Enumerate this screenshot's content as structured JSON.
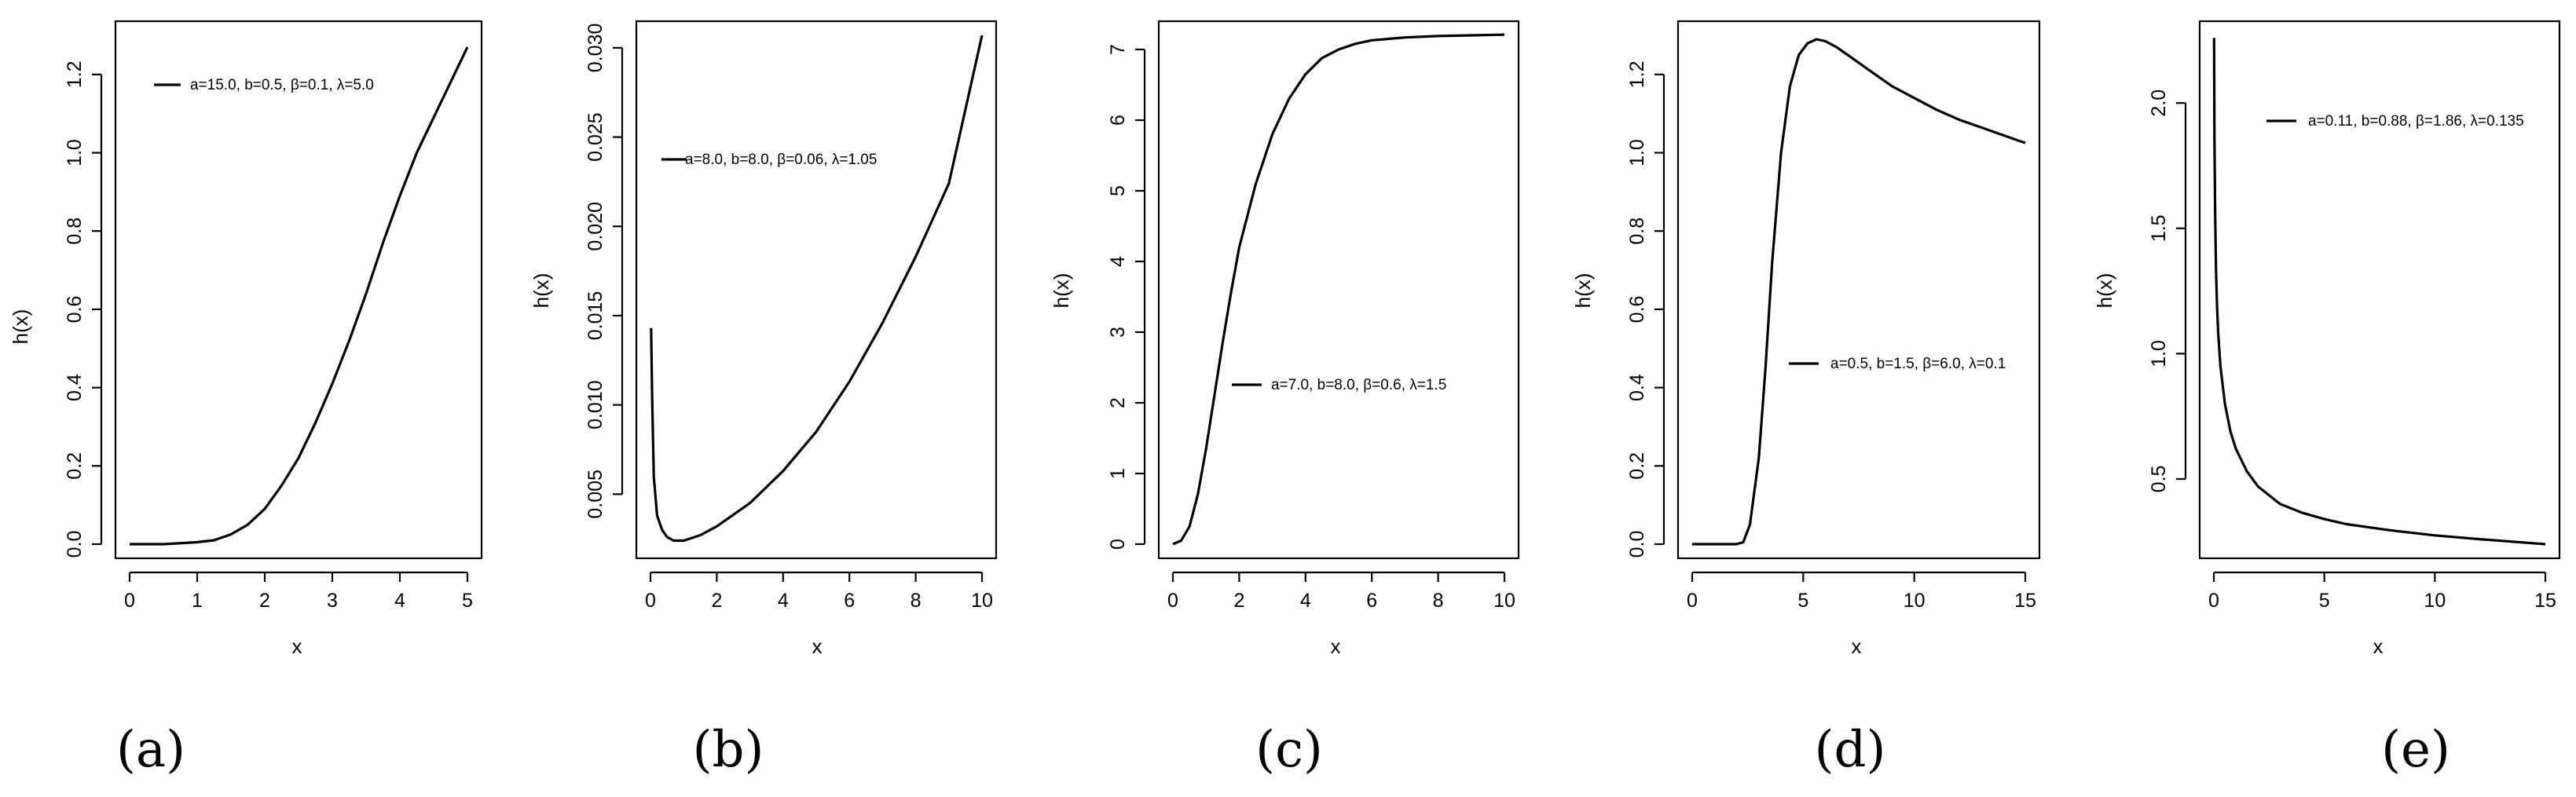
{
  "chart_data": [
    {
      "type": "line",
      "panel_label": "(a)",
      "xlabel": "x",
      "ylabel": "h(x)",
      "xlim": [
        0,
        5
      ],
      "ylim": [
        0,
        1.3
      ],
      "xticks": [
        "0",
        "1",
        "2",
        "3",
        "4",
        "5"
      ],
      "yticks": [
        "0.0",
        "0.2",
        "0.4",
        "0.6",
        "0.8",
        "1.0",
        "1.2"
      ],
      "legend": "a=15.0, b=0.5, β=0.1, λ=5.0",
      "legend_position": "top-left",
      "series": [
        {
          "name": "a=15.0, b=0.5, β=0.1, λ=5.0",
          "x": [
            0,
            0.5,
            1.0,
            1.25,
            1.5,
            1.75,
            2.0,
            2.25,
            2.5,
            2.75,
            3.0,
            3.25,
            3.5,
            3.75,
            4.0,
            4.25,
            4.5,
            4.75,
            5.0
          ],
          "y": [
            0,
            0,
            0.005,
            0.01,
            0.025,
            0.05,
            0.09,
            0.15,
            0.22,
            0.31,
            0.41,
            0.52,
            0.64,
            0.77,
            0.89,
            1.0,
            1.09,
            1.18,
            1.27
          ]
        }
      ]
    },
    {
      "type": "line",
      "panel_label": "(b)",
      "xlabel": "x",
      "ylabel": "h(x)",
      "xlim": [
        0,
        10
      ],
      "ylim": [
        0.0022,
        0.0307
      ],
      "xticks": [
        "0",
        "2",
        "4",
        "6",
        "8",
        "10"
      ],
      "yticks": [
        "0.005",
        "0.010",
        "0.015",
        "0.020",
        "0.025",
        "0.030"
      ],
      "legend": "a=8.0, b=8.0, β=0.06, λ=1.05",
      "legend_position": "top-left",
      "series": [
        {
          "name": "a=8.0, b=8.0, β=0.06, λ=1.05",
          "x": [
            0.02,
            0.05,
            0.1,
            0.2,
            0.35,
            0.5,
            0.7,
            1.0,
            1.5,
            2,
            3,
            4,
            5,
            6,
            7,
            8,
            9,
            10
          ],
          "y": [
            0.0143,
            0.0105,
            0.006,
            0.0038,
            0.003,
            0.0026,
            0.0024,
            0.0024,
            0.0027,
            0.0032,
            0.0045,
            0.0063,
            0.0085,
            0.0113,
            0.0146,
            0.0183,
            0.0224,
            0.0307
          ]
        }
      ]
    },
    {
      "type": "line",
      "panel_label": "(c)",
      "xlabel": "x",
      "ylabel": "h(x)",
      "xlim": [
        0,
        10
      ],
      "ylim": [
        0,
        7.2
      ],
      "xticks": [
        "0",
        "2",
        "4",
        "6",
        "8",
        "10"
      ],
      "yticks": [
        "0",
        "1",
        "2",
        "3",
        "4",
        "5",
        "6",
        "7"
      ],
      "legend": "a=7.0, b=8.0, β=0.6, λ=1.5",
      "legend_position": "center-right",
      "series": [
        {
          "name": "a=7.0, b=8.0, β=0.6, λ=1.5",
          "x": [
            0,
            0.25,
            0.5,
            0.75,
            1.0,
            1.25,
            1.5,
            1.75,
            2.0,
            2.5,
            3.0,
            3.5,
            4.0,
            4.5,
            5,
            5.5,
            6,
            7,
            8,
            9,
            10
          ],
          "y": [
            0,
            0.05,
            0.25,
            0.7,
            1.35,
            2.1,
            2.85,
            3.55,
            4.2,
            5.1,
            5.8,
            6.3,
            6.65,
            6.88,
            7.0,
            7.08,
            7.13,
            7.17,
            7.19,
            7.2,
            7.21
          ]
        }
      ]
    },
    {
      "type": "line",
      "panel_label": "(d)",
      "xlabel": "x",
      "ylabel": "h(x)",
      "xlim": [
        0,
        15
      ],
      "ylim": [
        0,
        1.3
      ],
      "xticks": [
        "0",
        "5",
        "10",
        "15"
      ],
      "yticks": [
        "0.0",
        "0.2",
        "0.4",
        "0.6",
        "0.8",
        "1.0",
        "1.2"
      ],
      "legend": "a=0.5, b=1.5, β=6.0, λ=0.1",
      "legend_position": "center-right",
      "series": [
        {
          "name": "a=0.5, b=1.5, β=6.0, λ=0.1",
          "x": [
            0,
            1,
            2,
            2.3,
            2.6,
            3.0,
            3.3,
            3.6,
            4.0,
            4.4,
            4.8,
            5.2,
            5.6,
            6.0,
            6.5,
            7.0,
            8.0,
            9.0,
            10.0,
            11.0,
            12.0,
            13.0,
            14.0,
            15.0
          ],
          "y": [
            0,
            0,
            0,
            0.005,
            0.05,
            0.22,
            0.45,
            0.72,
            1.0,
            1.17,
            1.25,
            1.28,
            1.29,
            1.285,
            1.27,
            1.25,
            1.21,
            1.17,
            1.14,
            1.11,
            1.085,
            1.065,
            1.045,
            1.025
          ]
        }
      ]
    },
    {
      "type": "line",
      "panel_label": "(e)",
      "xlabel": "x",
      "ylabel": "h(x)",
      "xlim": [
        0,
        15
      ],
      "ylim": [
        0.24,
        2.27
      ],
      "xticks": [
        "0",
        "5",
        "10",
        "15"
      ],
      "yticks": [
        "0.5",
        "1.0",
        "1.5",
        "2.0"
      ],
      "legend": "a=0.11, b=0.88, β=1.86, λ=0.135",
      "legend_position": "top-right",
      "series": [
        {
          "name": "a=0.11, b=0.88, β=1.86, λ=0.135",
          "x": [
            0.01,
            0.03,
            0.06,
            0.1,
            0.15,
            0.2,
            0.3,
            0.5,
            0.75,
            1.0,
            1.5,
            2,
            3,
            4,
            5,
            6,
            8,
            10,
            12,
            15
          ],
          "y": [
            2.26,
            1.85,
            1.55,
            1.33,
            1.18,
            1.08,
            0.95,
            0.8,
            0.69,
            0.62,
            0.53,
            0.47,
            0.4,
            0.365,
            0.34,
            0.32,
            0.295,
            0.275,
            0.26,
            0.24
          ]
        }
      ]
    }
  ]
}
